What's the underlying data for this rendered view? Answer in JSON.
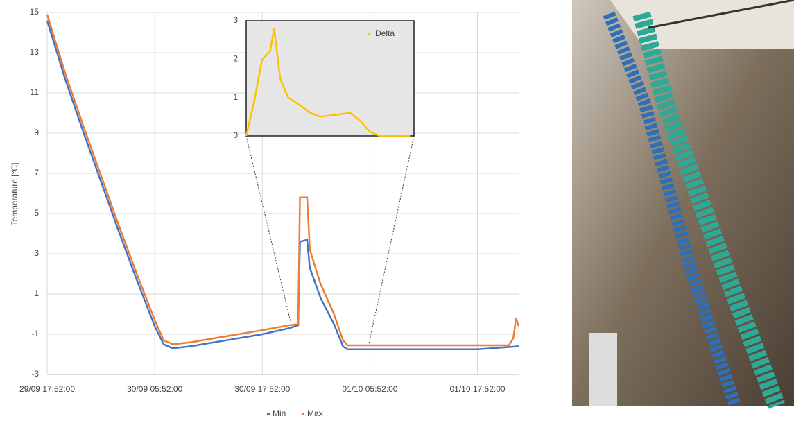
{
  "chart_data": [
    {
      "type": "line",
      "y_label": "Temperature [°C]",
      "xlim": [
        0,
        52.6
      ],
      "xticks": [
        {
          "value": 0,
          "label": "29/09 17:52:00"
        },
        {
          "value": 12,
          "label": "30/09 05:52:00"
        },
        {
          "value": 24,
          "label": "30/09 17:52:00"
        },
        {
          "value": 36,
          "label": "01/10 05:52:00"
        },
        {
          "value": 48,
          "label": "01/10 17:52:00"
        }
      ],
      "ylim": [
        -3,
        15
      ],
      "yticks": [
        -3,
        -1,
        1,
        3,
        5,
        7,
        9,
        11,
        13,
        15
      ],
      "grid": true,
      "series": [
        {
          "name": "Min",
          "color": "#4472c4",
          "x": [
            0,
            2,
            4,
            6,
            8,
            10,
            12,
            13,
            14,
            16,
            20,
            24,
            27,
            28,
            28.2,
            29,
            29.3,
            30.5,
            32,
            33,
            33.5,
            40,
            48,
            52.6
          ],
          "values": [
            14.6,
            11.7,
            9.1,
            6.6,
            4.1,
            1.7,
            -0.6,
            -1.5,
            -1.7,
            -1.6,
            -1.3,
            -1.0,
            -0.7,
            -0.55,
            3.6,
            3.7,
            2.3,
            0.8,
            -0.5,
            -1.6,
            -1.75,
            -1.75,
            -1.75,
            -1.6
          ]
        },
        {
          "name": "Max",
          "color": "#ed7d31",
          "x": [
            0,
            2,
            4,
            6,
            8,
            10,
            12,
            13,
            14,
            16,
            20,
            24,
            27,
            28,
            28.2,
            29,
            29.3,
            30.5,
            32,
            33,
            33.5,
            40,
            48,
            51.5,
            52,
            52.3,
            52.6
          ],
          "values": [
            14.9,
            12,
            9.4,
            6.9,
            4.4,
            2.0,
            -0.3,
            -1.3,
            -1.5,
            -1.4,
            -1.1,
            -0.8,
            -0.55,
            -0.5,
            5.8,
            5.8,
            3.2,
            1.5,
            0,
            -1.3,
            -1.55,
            -1.55,
            -1.55,
            -1.55,
            -1.2,
            -0.2,
            -0.6
          ]
        }
      ]
    },
    {
      "type": "line",
      "xlim": [
        27.8,
        36.2
      ],
      "ylim": [
        0,
        3
      ],
      "yticks": [
        0,
        1,
        2,
        3
      ],
      "series": [
        {
          "name": "Delta",
          "color": "#ffc000",
          "x": [
            27.8,
            28.2,
            28.6,
            29,
            29.2,
            29.5,
            29.9,
            30.5,
            31,
            31.5,
            32.3,
            33,
            33.5,
            34,
            34.5,
            36
          ],
          "values": [
            0,
            0.9,
            2.0,
            2.2,
            2.8,
            1.5,
            1.0,
            0.8,
            0.6,
            0.5,
            0.55,
            0.6,
            0.4,
            0.1,
            0,
            0
          ]
        }
      ]
    }
  ]
}
